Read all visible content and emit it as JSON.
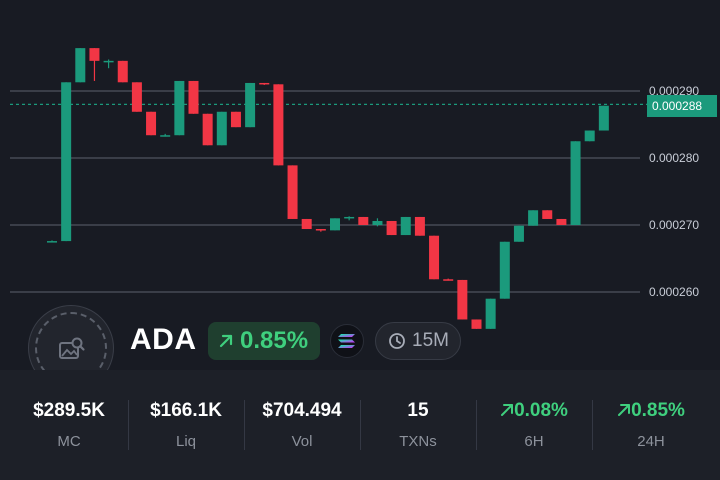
{
  "chart_data": {
    "type": "candlestick",
    "y_ticks": [
      "0.000290",
      "0.000280",
      "0.000270",
      "0.000260"
    ],
    "current_price": "0.000288",
    "up_color": "#1b9a7c",
    "down_color": "#f23645",
    "candles": [
      [
        0.0002676,
        0.0002677,
        0.0002675,
        0.0002676
      ],
      [
        0.0002676,
        0.0002913,
        0.0002676,
        0.0002913
      ],
      [
        0.0002913,
        0.0002964,
        0.0002913,
        0.0002964
      ],
      [
        0.0002964,
        0.0002964,
        0.0002915,
        0.0002945
      ],
      [
        0.0002945,
        0.0002947,
        0.0002934,
        0.0002945
      ],
      [
        0.0002945,
        0.0002945,
        0.0002913,
        0.0002913
      ],
      [
        0.0002913,
        0.0002913,
        0.0002869,
        0.0002869
      ],
      [
        0.0002869,
        0.0002869,
        0.0002834,
        0.0002834
      ],
      [
        0.0002834,
        0.0002836,
        0.0002832,
        0.0002834
      ],
      [
        0.0002834,
        0.0002915,
        0.0002834,
        0.0002915
      ],
      [
        0.0002915,
        0.0002915,
        0.0002866,
        0.0002866
      ],
      [
        0.0002866,
        0.0002866,
        0.0002819,
        0.0002819
      ],
      [
        0.0002819,
        0.0002869,
        0.0002819,
        0.0002869
      ],
      [
        0.0002869,
        0.0002869,
        0.0002846,
        0.0002846
      ],
      [
        0.0002846,
        0.0002912,
        0.0002846,
        0.0002912
      ],
      [
        0.0002912,
        0.0002912,
        0.0002909,
        0.000291
      ],
      [
        0.000291,
        0.000291,
        0.0002789,
        0.0002789
      ],
      [
        0.0002789,
        0.0002789,
        0.0002709,
        0.0002709
      ],
      [
        0.0002709,
        0.0002709,
        0.0002694,
        0.0002694
      ],
      [
        0.0002694,
        0.0002694,
        0.000269,
        0.0002692
      ],
      [
        0.0002692,
        0.000271,
        0.0002692,
        0.000271
      ],
      [
        0.000271,
        0.0002713,
        0.0002707,
        0.0002712
      ],
      [
        0.0002712,
        0.0002712,
        0.00027,
        0.00027
      ],
      [
        0.00027,
        0.000271,
        0.0002698,
        0.0002706
      ],
      [
        0.0002706,
        0.0002706,
        0.0002685,
        0.0002685
      ],
      [
        0.0002685,
        0.0002712,
        0.0002685,
        0.0002712
      ],
      [
        0.0002712,
        0.0002712,
        0.0002684,
        0.0002684
      ],
      [
        0.0002684,
        0.0002684,
        0.0002619,
        0.0002619
      ],
      [
        0.0002619,
        0.000262,
        0.0002617,
        0.0002618
      ],
      [
        0.0002618,
        0.0002618,
        0.0002559,
        0.0002559
      ],
      [
        0.0002559,
        0.0002559,
        0.0002545,
        0.0002545
      ],
      [
        0.0002545,
        0.000259,
        0.0002545,
        0.000259
      ],
      [
        0.000259,
        0.0002675,
        0.000259,
        0.0002675
      ],
      [
        0.0002675,
        0.0002699,
        0.0002675,
        0.0002699
      ],
      [
        0.0002699,
        0.0002722,
        0.0002699,
        0.0002722
      ],
      [
        0.0002722,
        0.0002722,
        0.0002709,
        0.0002709
      ],
      [
        0.0002709,
        0.0002709,
        0.00027,
        0.00027
      ],
      [
        0.00027,
        0.0002825,
        0.00027,
        0.0002825
      ],
      [
        0.0002825,
        0.0002841,
        0.0002825,
        0.0002841
      ],
      [
        0.0002841,
        0.0002878,
        0.0002841,
        0.0002878
      ]
    ]
  },
  "token": {
    "symbol": "ADA",
    "change": "0.85%",
    "timeframe": "15M"
  },
  "stats": [
    {
      "value": "$289.5K",
      "label": "MC",
      "up": false
    },
    {
      "value": "$166.1K",
      "label": "Liq",
      "up": false
    },
    {
      "value": "$704.494",
      "label": "Vol",
      "up": false
    },
    {
      "value": "15",
      "label": "TXNs",
      "up": false
    },
    {
      "value": "0.08%",
      "label": "6H",
      "up": true
    },
    {
      "value": "0.85%",
      "label": "24H",
      "up": true
    }
  ],
  "colors": {
    "up": "#3fcf7e",
    "candle_up": "#1b9a7c",
    "candle_down": "#f23645",
    "background": "#181b23"
  },
  "icons": {
    "avatar_placeholder": "image-search-icon",
    "change_arrow": "arrow-up-right-icon",
    "chain": "solana-logo",
    "timeframe": "clock-icon"
  }
}
